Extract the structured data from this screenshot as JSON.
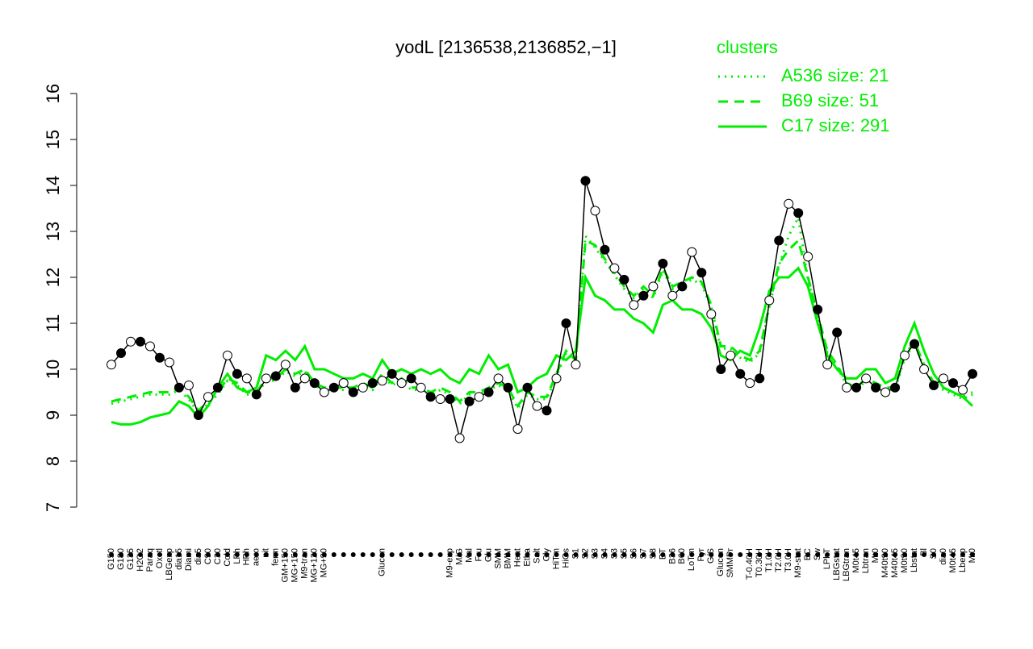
{
  "chart_data": {
    "type": "line",
    "title": "yodL [2136538,2136852,−1]",
    "legend_title": "clusters",
    "legend_position": "top-right",
    "categories": [
      "G150",
      "G180",
      "G135",
      "H2O2",
      "Paraq",
      "Oxctl",
      "LBGexp",
      "dia15",
      "Diami",
      "dia5",
      "C90",
      "C30",
      "Cold",
      "LPh",
      "HPh",
      "aero",
      "nit",
      "ferm",
      "GM+150",
      "MG+150",
      "M9-tran",
      "MG+120",
      "MG+90",
      null,
      null,
      null,
      null,
      null,
      "Glucon",
      null,
      null,
      null,
      null,
      null,
      null,
      "M9-exp",
      "M/G",
      "Mal",
      "Fru",
      "Glu",
      "SMM",
      "BMM",
      "Heat",
      "Etha",
      "Salt",
      "Gly",
      "HiTm",
      "HiOs",
      "S1",
      "S2",
      "S3",
      "S4",
      "S3",
      "S5",
      "S6",
      "S7",
      "S8",
      "BT",
      "B36",
      "B60",
      "LoTm",
      "Pyr",
      "G/S",
      "Glucon",
      "SMMPr",
      null,
      "T-0.40H",
      "T0.30H",
      "T1.0H",
      "T2.0H",
      "T3.0H",
      "M9-stat",
      "BC",
      "Sw",
      "LPhT",
      "LBGstat",
      "LBGtran",
      "M0t45",
      "Lbtran",
      "Mt0",
      "M40t90",
      "M40t45",
      "M0t90",
      "Lbstat",
      "Bl",
      "S0",
      "dia0",
      "M0t45",
      "Lbexp",
      "Mt0"
    ],
    "values": [
      10.1,
      10.35,
      10.6,
      10.6,
      10.5,
      10.25,
      10.15,
      9.6,
      9.65,
      9.0,
      9.4,
      9.6,
      10.3,
      9.9,
      9.8,
      9.45,
      9.8,
      9.85,
      10.1,
      9.6,
      9.8,
      9.7,
      9.5,
      9.6,
      9.7,
      9.5,
      9.6,
      9.7,
      9.75,
      9.9,
      9.7,
      9.8,
      9.6,
      9.4,
      9.35,
      9.35,
      8.5,
      9.3,
      9.4,
      9.5,
      9.8,
      9.6,
      8.7,
      9.6,
      9.2,
      9.1,
      9.8,
      11.0,
      10.1,
      14.1,
      13.45,
      12.6,
      12.2,
      11.95,
      11.4,
      11.6,
      11.8,
      12.3,
      11.6,
      11.8,
      12.55,
      12.1,
      11.2,
      10.0,
      10.3,
      9.9,
      9.7,
      9.8,
      11.5,
      12.8,
      13.6,
      13.4,
      12.45,
      11.3,
      10.1,
      10.8,
      9.6,
      9.6,
      9.8,
      9.6,
      9.5,
      9.6,
      10.3,
      10.55,
      10.0,
      9.65,
      9.8,
      9.7,
      9.55,
      9.9
    ],
    "series": [
      {
        "name": "A536 size: 21",
        "color": "#00ee00",
        "style": "dotted",
        "values": [
          9.25,
          9.3,
          9.35,
          9.4,
          9.45,
          9.45,
          9.45,
          9.55,
          9.35,
          9.05,
          9.25,
          9.45,
          9.75,
          9.65,
          9.45,
          9.45,
          9.75,
          9.75,
          9.95,
          9.85,
          9.95,
          9.65,
          9.55,
          9.55,
          9.55,
          9.55,
          9.65,
          9.55,
          9.85,
          9.65,
          9.75,
          9.55,
          9.55,
          9.45,
          9.55,
          9.45,
          9.25,
          9.45,
          9.45,
          9.55,
          9.65,
          9.55,
          9.15,
          9.45,
          9.35,
          9.35,
          9.85,
          10.35,
          10.15,
          12.9,
          12.65,
          12.35,
          12.05,
          11.75,
          11.55,
          11.75,
          11.55,
          12.15,
          11.75,
          11.85,
          11.95,
          11.85,
          11.35,
          10.45,
          10.45,
          10.25,
          10.15,
          10.35,
          11.35,
          12.25,
          12.9,
          13.3,
          11.95,
          11.15,
          10.35,
          10.05,
          9.65,
          9.55,
          9.75,
          9.65,
          9.55,
          9.55,
          10.25,
          10.55,
          10.05,
          9.65,
          9.55,
          9.45,
          9.35,
          9.45
        ]
      },
      {
        "name": "B69 size: 51",
        "color": "#00ee00",
        "style": "dashed",
        "values": [
          9.3,
          9.35,
          9.4,
          9.45,
          9.5,
          9.5,
          9.5,
          9.6,
          9.4,
          9.1,
          9.3,
          9.5,
          9.8,
          9.7,
          9.5,
          9.5,
          9.8,
          9.8,
          10.0,
          9.9,
          10.0,
          9.7,
          9.6,
          9.6,
          9.6,
          9.6,
          9.7,
          9.6,
          9.9,
          9.7,
          9.8,
          9.6,
          9.6,
          9.5,
          9.6,
          9.5,
          9.3,
          9.5,
          9.5,
          9.6,
          9.7,
          9.6,
          9.2,
          9.5,
          9.4,
          9.4,
          9.9,
          10.4,
          10.2,
          12.8,
          12.7,
          12.4,
          12.1,
          11.8,
          11.6,
          11.8,
          11.6,
          12.2,
          11.8,
          11.9,
          12.0,
          11.9,
          11.4,
          10.5,
          10.5,
          10.3,
          10.2,
          10.4,
          11.4,
          12.3,
          12.6,
          12.8,
          12.0,
          11.2,
          10.4,
          10.1,
          9.7,
          9.6,
          9.8,
          9.7,
          9.6,
          9.6,
          10.3,
          10.6,
          10.1,
          9.7,
          9.6,
          9.5,
          9.4,
          9.5
        ]
      },
      {
        "name": "C17 size: 291",
        "color": "#00ee00",
        "style": "solid",
        "values": [
          8.85,
          8.8,
          8.8,
          8.85,
          8.95,
          9.0,
          9.05,
          9.3,
          9.2,
          8.95,
          9.2,
          9.6,
          9.9,
          9.6,
          9.5,
          9.6,
          10.3,
          10.2,
          10.4,
          10.2,
          10.5,
          10.0,
          10.0,
          9.9,
          9.8,
          9.8,
          9.9,
          9.8,
          10.2,
          9.9,
          10.0,
          9.9,
          10.0,
          9.9,
          10.0,
          9.8,
          9.7,
          10.0,
          9.9,
          10.3,
          10.0,
          10.1,
          9.5,
          9.6,
          9.8,
          9.9,
          10.3,
          10.2,
          10.4,
          12.0,
          11.6,
          11.5,
          11.3,
          11.3,
          11.1,
          11.0,
          10.8,
          11.4,
          11.5,
          11.3,
          11.3,
          11.2,
          10.9,
          10.3,
          10.2,
          10.4,
          10.3,
          10.9,
          11.7,
          12.0,
          12.0,
          12.2,
          11.8,
          11.0,
          10.3,
          10.0,
          9.8,
          9.8,
          10.0,
          10.0,
          9.7,
          9.8,
          10.5,
          11.0,
          10.4,
          9.9,
          9.6,
          9.5,
          9.4,
          9.2
        ]
      }
    ],
    "ylim": [
      7,
      16
    ],
    "yticks": [
      7,
      8,
      9,
      10,
      11,
      12,
      13,
      14,
      15,
      16
    ]
  }
}
